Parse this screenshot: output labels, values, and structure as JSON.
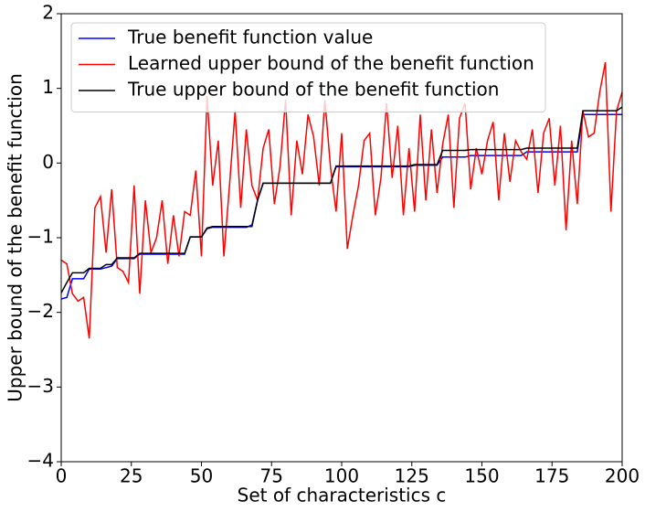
{
  "chart_data": {
    "type": "line",
    "xlabel": "Set of characteristics c",
    "ylabel": "Upper bound of the benefit function",
    "xlim": [
      0,
      200
    ],
    "ylim": [
      -4,
      2
    ],
    "xticks": [
      0,
      25,
      50,
      75,
      100,
      125,
      150,
      175,
      200
    ],
    "yticks": [
      {
        "value": -4,
        "label": "−4"
      },
      {
        "value": -3,
        "label": "−3"
      },
      {
        "value": -2,
        "label": "−2"
      },
      {
        "value": -1,
        "label": "−1"
      },
      0,
      1,
      2
    ],
    "grid": false,
    "legend": "upper left",
    "x": [
      0,
      2,
      4,
      6,
      8,
      10,
      12,
      14,
      16,
      18,
      20,
      22,
      24,
      26,
      28,
      30,
      32,
      34,
      36,
      38,
      40,
      42,
      44,
      46,
      48,
      50,
      52,
      54,
      56,
      58,
      60,
      62,
      64,
      66,
      68,
      70,
      72,
      74,
      76,
      78,
      80,
      82,
      84,
      86,
      88,
      90,
      92,
      94,
      96,
      98,
      100,
      102,
      104,
      106,
      108,
      110,
      112,
      114,
      116,
      118,
      120,
      122,
      124,
      126,
      128,
      130,
      132,
      134,
      136,
      138,
      140,
      142,
      144,
      146,
      148,
      150,
      152,
      154,
      156,
      158,
      160,
      162,
      164,
      166,
      168,
      170,
      172,
      174,
      176,
      178,
      180,
      182,
      184,
      186,
      188,
      190,
      192,
      194,
      196,
      198,
      200
    ],
    "series": [
      {
        "name": "True benefit function value",
        "color": "#0000ff",
        "values": [
          -1.82,
          -1.8,
          -1.55,
          -1.55,
          -1.55,
          -1.42,
          -1.42,
          -1.42,
          -1.4,
          -1.38,
          -1.28,
          -1.28,
          -1.28,
          -1.28,
          -1.22,
          -1.22,
          -1.22,
          -1.22,
          -1.22,
          -1.22,
          -1.22,
          -1.22,
          -1.22,
          -0.99,
          -0.99,
          -0.99,
          -0.88,
          -0.86,
          -0.86,
          -0.86,
          -0.86,
          -0.86,
          -0.86,
          -0.86,
          -0.83,
          -0.5,
          -0.27,
          -0.27,
          -0.27,
          -0.27,
          -0.27,
          -0.27,
          -0.27,
          -0.27,
          -0.27,
          -0.27,
          -0.27,
          -0.27,
          -0.27,
          -0.05,
          -0.05,
          -0.05,
          -0.05,
          -0.05,
          -0.05,
          -0.05,
          -0.05,
          -0.05,
          -0.05,
          -0.05,
          -0.05,
          -0.05,
          -0.05,
          -0.03,
          -0.03,
          -0.03,
          -0.03,
          -0.03,
          0.08,
          0.08,
          0.08,
          0.08,
          0.08,
          0.1,
          0.1,
          0.1,
          0.1,
          0.1,
          0.1,
          0.1,
          0.1,
          0.1,
          0.1,
          0.15,
          0.15,
          0.15,
          0.15,
          0.15,
          0.15,
          0.15,
          0.15,
          0.15,
          0.15,
          0.65,
          0.65,
          0.65,
          0.65,
          0.65,
          0.65,
          0.65,
          0.65
        ]
      },
      {
        "name": "Learned upper bound of the benefit function",
        "color": "#ff0000",
        "values": [
          -1.3,
          -1.35,
          -1.75,
          -1.85,
          -1.8,
          -2.35,
          -0.6,
          -0.45,
          -1.2,
          -0.35,
          -1.4,
          -1.45,
          -1.6,
          -0.3,
          -1.75,
          -0.5,
          -1.2,
          -1.0,
          -0.5,
          -1.35,
          -0.7,
          -1.25,
          -0.65,
          -0.7,
          -0.1,
          -1.25,
          0.9,
          -0.3,
          0.3,
          -1.25,
          -0.3,
          0.7,
          -0.6,
          0.45,
          -0.3,
          -0.5,
          0.2,
          0.45,
          -0.55,
          -0.05,
          0.85,
          -0.7,
          0.3,
          -0.15,
          0.65,
          0.35,
          -0.3,
          0.85,
          -0.05,
          -0.65,
          0.4,
          -1.15,
          -0.7,
          -0.3,
          0.3,
          0.4,
          -0.7,
          -0.2,
          0.8,
          -0.2,
          0.5,
          -0.7,
          0.2,
          -0.65,
          0.65,
          -0.5,
          0.45,
          -0.4,
          0.25,
          0.65,
          -0.6,
          0.6,
          0.8,
          -0.35,
          0.2,
          -0.15,
          0.3,
          0.55,
          -0.5,
          0.4,
          -0.25,
          0.3,
          0.15,
          0.05,
          0.45,
          -0.4,
          0.4,
          0.6,
          -0.3,
          0.5,
          -0.9,
          0.3,
          -0.55,
          0.7,
          0.35,
          0.4,
          0.95,
          1.35,
          -0.65,
          0.7,
          0.95
        ]
      },
      {
        "name": "True upper bound of the benefit function",
        "color": "#000000",
        "values": [
          -1.74,
          -1.6,
          -1.47,
          -1.47,
          -1.47,
          -1.41,
          -1.41,
          -1.41,
          -1.36,
          -1.36,
          -1.27,
          -1.27,
          -1.27,
          -1.27,
          -1.21,
          -1.21,
          -1.21,
          -1.21,
          -1.21,
          -1.21,
          -1.21,
          -1.21,
          -1.21,
          -0.99,
          -0.99,
          -0.99,
          -0.87,
          -0.85,
          -0.85,
          -0.85,
          -0.85,
          -0.85,
          -0.85,
          -0.85,
          -0.85,
          -0.5,
          -0.27,
          -0.27,
          -0.27,
          -0.27,
          -0.27,
          -0.27,
          -0.27,
          -0.27,
          -0.27,
          -0.27,
          -0.27,
          -0.27,
          -0.27,
          -0.04,
          -0.04,
          -0.04,
          -0.04,
          -0.04,
          -0.04,
          -0.04,
          -0.04,
          -0.04,
          -0.04,
          -0.04,
          -0.04,
          -0.04,
          -0.04,
          -0.02,
          -0.02,
          -0.02,
          -0.02,
          -0.02,
          0.17,
          0.17,
          0.17,
          0.17,
          0.17,
          0.18,
          0.18,
          0.18,
          0.18,
          0.18,
          0.18,
          0.18,
          0.18,
          0.18,
          0.18,
          0.2,
          0.2,
          0.2,
          0.2,
          0.2,
          0.2,
          0.2,
          0.2,
          0.2,
          0.2,
          0.7,
          0.7,
          0.7,
          0.7,
          0.7,
          0.7,
          0.7,
          0.75
        ]
      }
    ]
  }
}
